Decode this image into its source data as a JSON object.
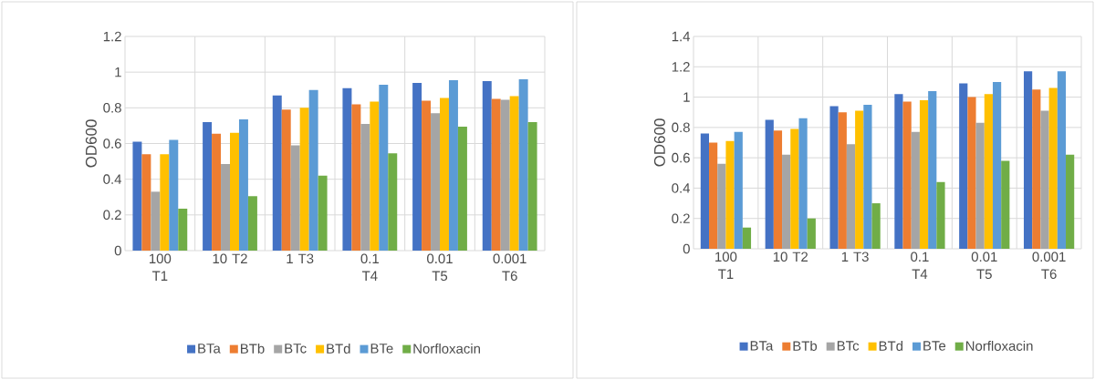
{
  "chart_data": [
    {
      "type": "bar",
      "ylabel": "OD600",
      "categories": [
        "100 T1",
        "10 T2",
        "1 T3",
        "0.1 T4",
        "0.01 T5",
        "0.001 T6"
      ],
      "ylim": [
        0,
        1.2
      ],
      "yticks": [
        0,
        0.2,
        0.4,
        0.6,
        0.8,
        1,
        1.2
      ],
      "grid": true,
      "legend": "bottom",
      "series": [
        {
          "name": "BTa",
          "color": "#4472c4",
          "values": [
            0.61,
            0.72,
            0.87,
            0.91,
            0.94,
            0.95
          ]
        },
        {
          "name": "BTb",
          "color": "#ed7d31",
          "values": [
            0.54,
            0.655,
            0.79,
            0.82,
            0.84,
            0.85
          ]
        },
        {
          "name": "BTc",
          "color": "#a5a5a5",
          "values": [
            0.33,
            0.485,
            0.59,
            0.71,
            0.77,
            0.845
          ]
        },
        {
          "name": "BTd",
          "color": "#ffc000",
          "values": [
            0.54,
            0.66,
            0.8,
            0.835,
            0.855,
            0.865
          ]
        },
        {
          "name": "BTe",
          "color": "#5b9bd5",
          "values": [
            0.62,
            0.735,
            0.9,
            0.93,
            0.955,
            0.96
          ]
        },
        {
          "name": "Norfloxacin",
          "color": "#70ad47",
          "values": [
            0.235,
            0.305,
            0.42,
            0.545,
            0.695,
            0.72
          ]
        }
      ]
    },
    {
      "type": "bar",
      "ylabel": "OD600",
      "categories": [
        "100 T1",
        "10 T2",
        "1 T3",
        "0.1 T4",
        "0.01 T5",
        "0.001 T6"
      ],
      "ylim": [
        0,
        1.4
      ],
      "yticks": [
        0,
        0.2,
        0.4,
        0.6,
        0.8,
        1,
        1.2,
        1.4
      ],
      "grid": true,
      "legend": "bottom",
      "series": [
        {
          "name": "BTa",
          "color": "#4472c4",
          "values": [
            0.76,
            0.85,
            0.94,
            1.02,
            1.09,
            1.17
          ]
        },
        {
          "name": "BTb",
          "color": "#ed7d31",
          "values": [
            0.7,
            0.78,
            0.9,
            0.97,
            1.0,
            1.05
          ]
        },
        {
          "name": "BTc",
          "color": "#a5a5a5",
          "values": [
            0.56,
            0.62,
            0.69,
            0.77,
            0.83,
            0.91
          ]
        },
        {
          "name": "BTd",
          "color": "#ffc000",
          "values": [
            0.71,
            0.79,
            0.91,
            0.98,
            1.02,
            1.06
          ]
        },
        {
          "name": "BTe",
          "color": "#5b9bd5",
          "values": [
            0.77,
            0.86,
            0.95,
            1.04,
            1.1,
            1.17
          ]
        },
        {
          "name": "Norfloxacin",
          "color": "#70ad47",
          "values": [
            0.14,
            0.2,
            0.3,
            0.44,
            0.58,
            0.62
          ]
        }
      ]
    }
  ]
}
